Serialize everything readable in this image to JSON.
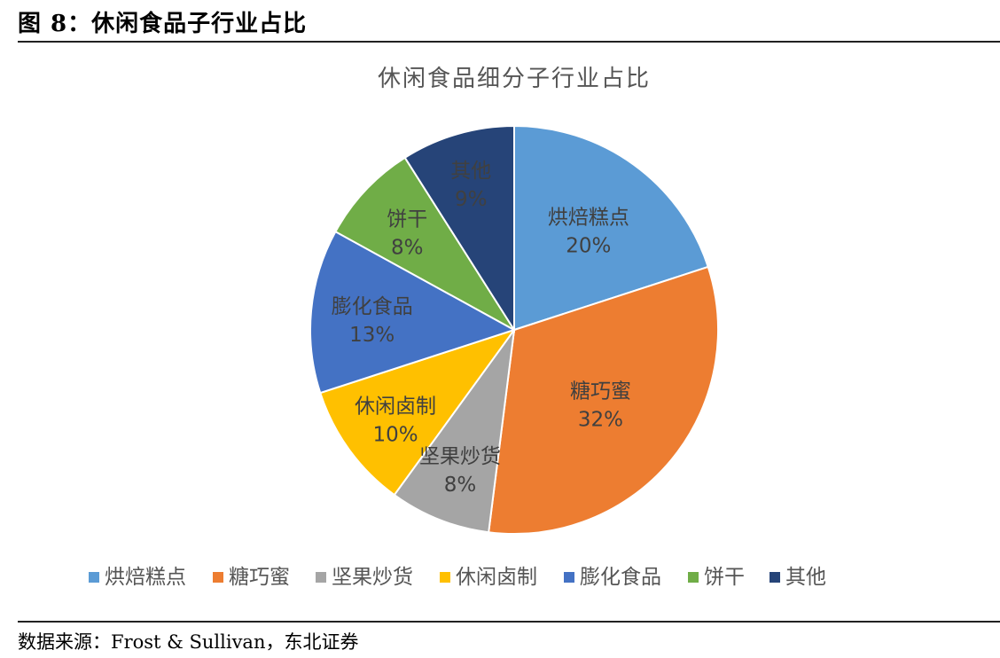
{
  "caption": "图 8：休闲食品子行业占比",
  "source": "数据来源：Frost & Sullivan，东北证券",
  "chart_data": {
    "type": "pie",
    "title": "休闲食品细分子行业占比",
    "legend_position": "bottom",
    "slices": [
      {
        "label": "烘焙糕点",
        "value": 20,
        "display": "20%",
        "color": "#5B9BD5"
      },
      {
        "label": "糖巧蜜",
        "value": 32,
        "display": "32%",
        "color": "#ED7D31"
      },
      {
        "label": "坚果炒货",
        "value": 8,
        "display": "8%",
        "color": "#A5A5A5"
      },
      {
        "label": "休闲卤制",
        "value": 10,
        "display": "10%",
        "color": "#FFC000"
      },
      {
        "label": "膨化食品",
        "value": 13,
        "display": "13%",
        "color": "#4472C4"
      },
      {
        "label": "饼干",
        "value": 8,
        "display": "8%",
        "color": "#70AD47"
      },
      {
        "label": "其他",
        "value": 9,
        "display": "9%",
        "color": "#264478"
      }
    ]
  }
}
